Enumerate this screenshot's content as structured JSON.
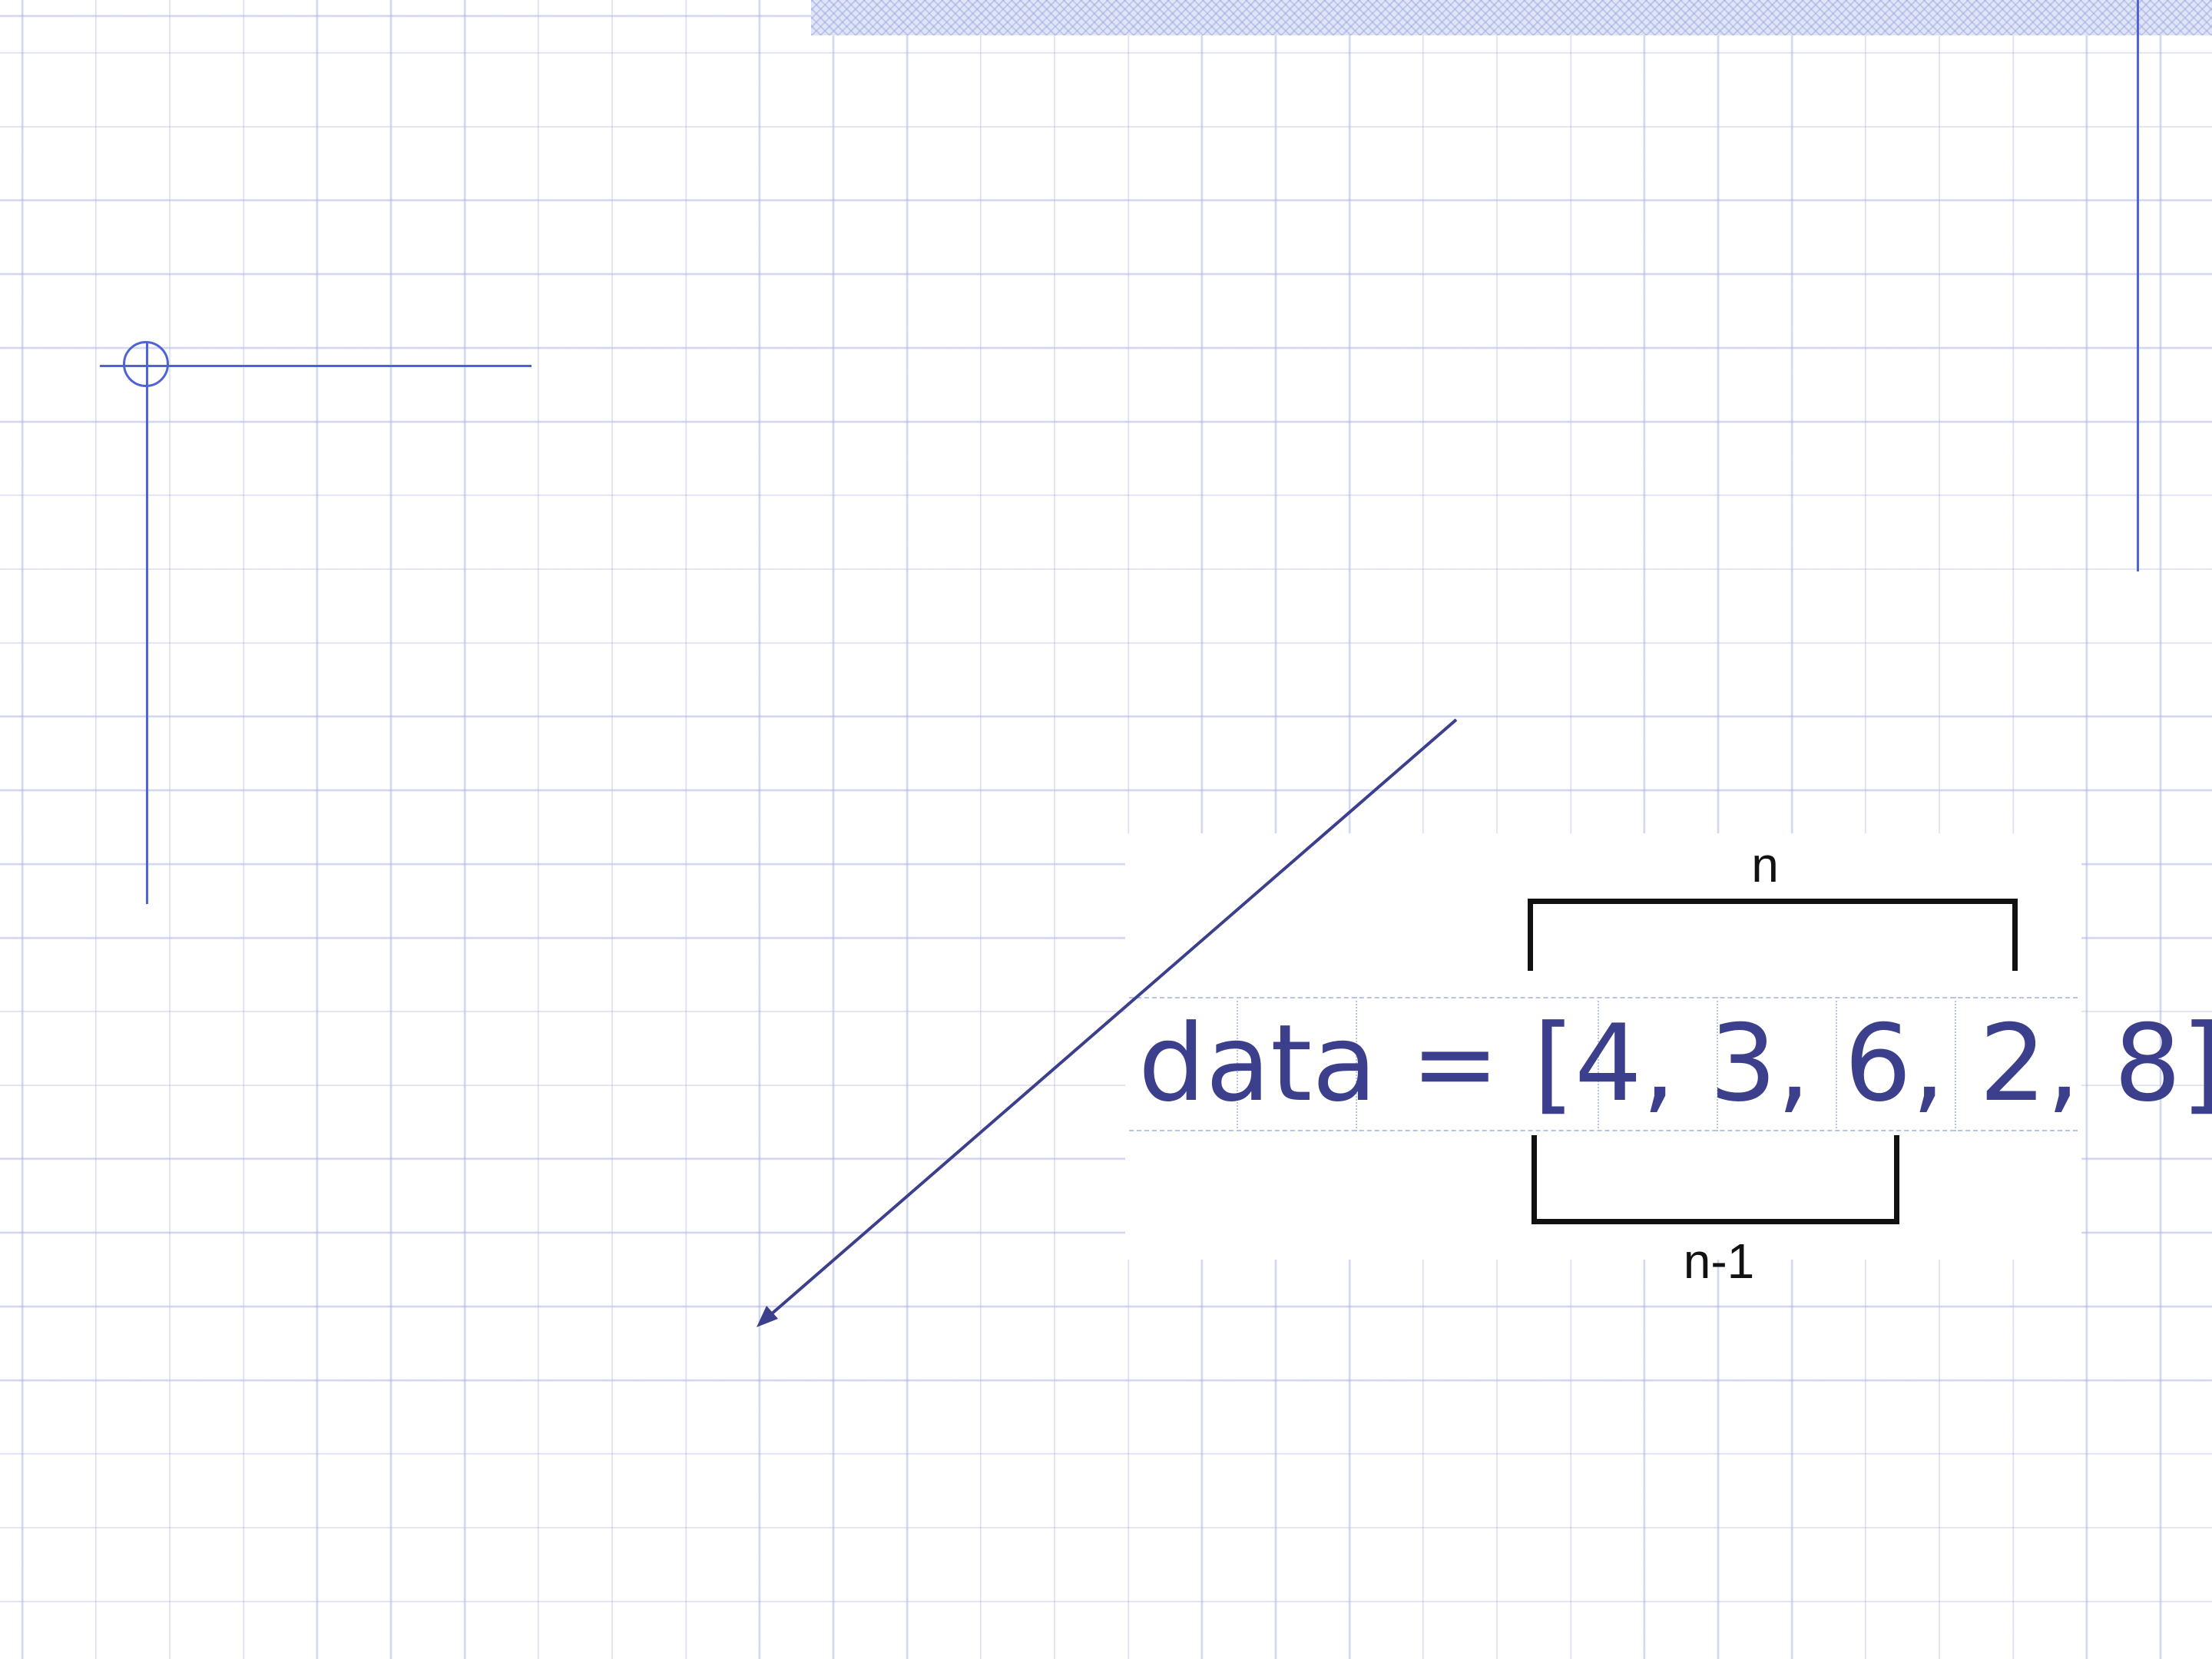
{
  "slide": {
    "colors": {
      "accent": "#4f63d6",
      "grid": "#a8b2e4",
      "expression_text": "#3b3f8c",
      "arrow": "#3b3f8c",
      "brace": "#111111"
    }
  },
  "diagram": {
    "expression": "data = [4, 3, 6, 2, 8]",
    "brace_top_label": "n",
    "brace_bottom_label": "n-1"
  }
}
